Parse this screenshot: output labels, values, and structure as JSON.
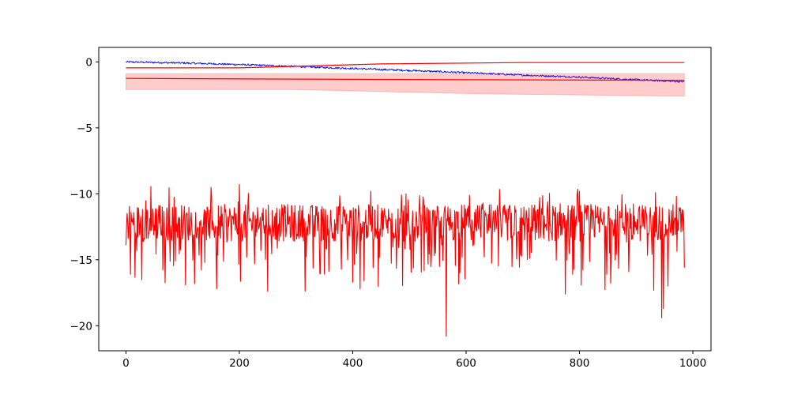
{
  "chart_data": {
    "type": "line",
    "title": "",
    "xlabel": "",
    "ylabel": "",
    "xlim": [
      -48,
      1032
    ],
    "ylim": [
      -21.9,
      1.1
    ],
    "grid": false,
    "legend": "none",
    "x_ticks": [
      0,
      200,
      400,
      600,
      800,
      1000
    ],
    "y_ticks": [
      0,
      -5,
      -10,
      -15,
      -20
    ],
    "x_tick_labels": [
      "0",
      "200",
      "400",
      "600",
      "800",
      "1000"
    ],
    "y_tick_labels": [
      "0",
      "−5",
      "−10",
      "−15",
      "−20"
    ],
    "series": [
      {
        "color": "#0000ff",
        "kind": "noisy-line",
        "x": [
          0,
          100,
          200,
          300,
          400,
          500,
          600,
          700,
          800,
          900,
          985
        ],
        "y": [
          0.0,
          -0.08,
          -0.2,
          -0.35,
          -0.5,
          -0.65,
          -0.82,
          -1.0,
          -1.15,
          -1.35,
          -1.5
        ]
      },
      {
        "color": "#ff0000",
        "kind": "line",
        "x": [
          0,
          200,
          450,
          700,
          985
        ],
        "y": [
          -0.45,
          -0.45,
          -0.15,
          -0.05,
          -0.05
        ]
      },
      {
        "color": "#ff0000",
        "kind": "mean-with-band",
        "x": [
          0,
          300,
          600,
          985
        ],
        "y": [
          -1.25,
          -1.3,
          -1.35,
          -1.4
        ],
        "band_upper": [
          -0.9,
          -0.9,
          -0.9,
          -0.9
        ],
        "band_lower": [
          -2.1,
          -2.1,
          -2.4,
          -2.6
        ],
        "band_color": "#ff0000"
      },
      {
        "color": "#ff0000",
        "kind": "noisy-line",
        "x": [
          0,
          985
        ],
        "y": [
          -12.2,
          -12.2
        ],
        "min": -20.8,
        "max": -9.3,
        "extremes": [
          [
            0,
            -13.9
          ],
          [
            8,
            -16.1
          ],
          [
            105,
            -16.9
          ],
          [
            160,
            -17.2
          ],
          [
            200,
            -9.3
          ],
          [
            400,
            -16.7
          ],
          [
            565,
            -20.8
          ],
          [
            775,
            -17.6
          ],
          [
            800,
            -9.8
          ],
          [
            945,
            -19.4
          ],
          [
            948,
            -18.7
          ],
          [
            985,
            -15.6
          ]
        ]
      }
    ]
  }
}
